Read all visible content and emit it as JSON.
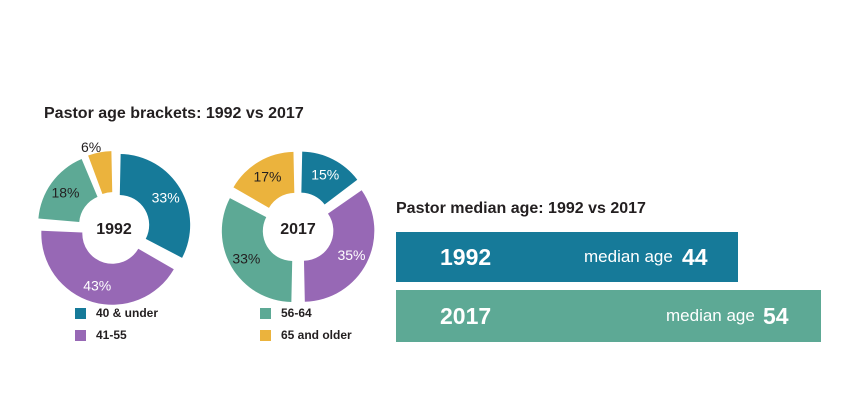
{
  "title": "Pastor age brackets: 1992 vs 2017",
  "median_title": "Pastor median age: 1992 vs 2017",
  "colors": {
    "40 & under": "#167a99",
    "41-55": "#9768b5",
    "56-64": "#5da995",
    "65 and older": "#ebb33d"
  },
  "chart_data": [
    {
      "type": "pie",
      "center_label": "1992",
      "categories": [
        "40 & under",
        "41-55",
        "56-64",
        "65 and older"
      ],
      "values": [
        33,
        43,
        18,
        6
      ],
      "labels": [
        "33%",
        "43%",
        "18%",
        "6%"
      ]
    },
    {
      "type": "pie",
      "center_label": "2017",
      "categories": [
        "40 & under",
        "41-55",
        "56-64",
        "65 and older"
      ],
      "values": [
        15,
        35,
        33,
        17
      ],
      "labels": [
        "15%",
        "35%",
        "33%",
        "17%"
      ]
    },
    {
      "type": "bar",
      "title": "Pastor median age: 1992 vs 2017",
      "categories": [
        "1992",
        "2017"
      ],
      "values": [
        44,
        54
      ],
      "value_label": "median age",
      "colors": [
        "#167a99",
        "#5da995"
      ]
    }
  ],
  "legend": [
    [
      "40 & under",
      "41-55"
    ],
    [
      "56-64",
      "65 and older"
    ]
  ],
  "median_bars": [
    {
      "year": "1992",
      "label": "median age",
      "value": "44",
      "color": "#167a99"
    },
    {
      "year": "2017",
      "label": "median age",
      "value": "54",
      "color": "#5da995"
    }
  ]
}
